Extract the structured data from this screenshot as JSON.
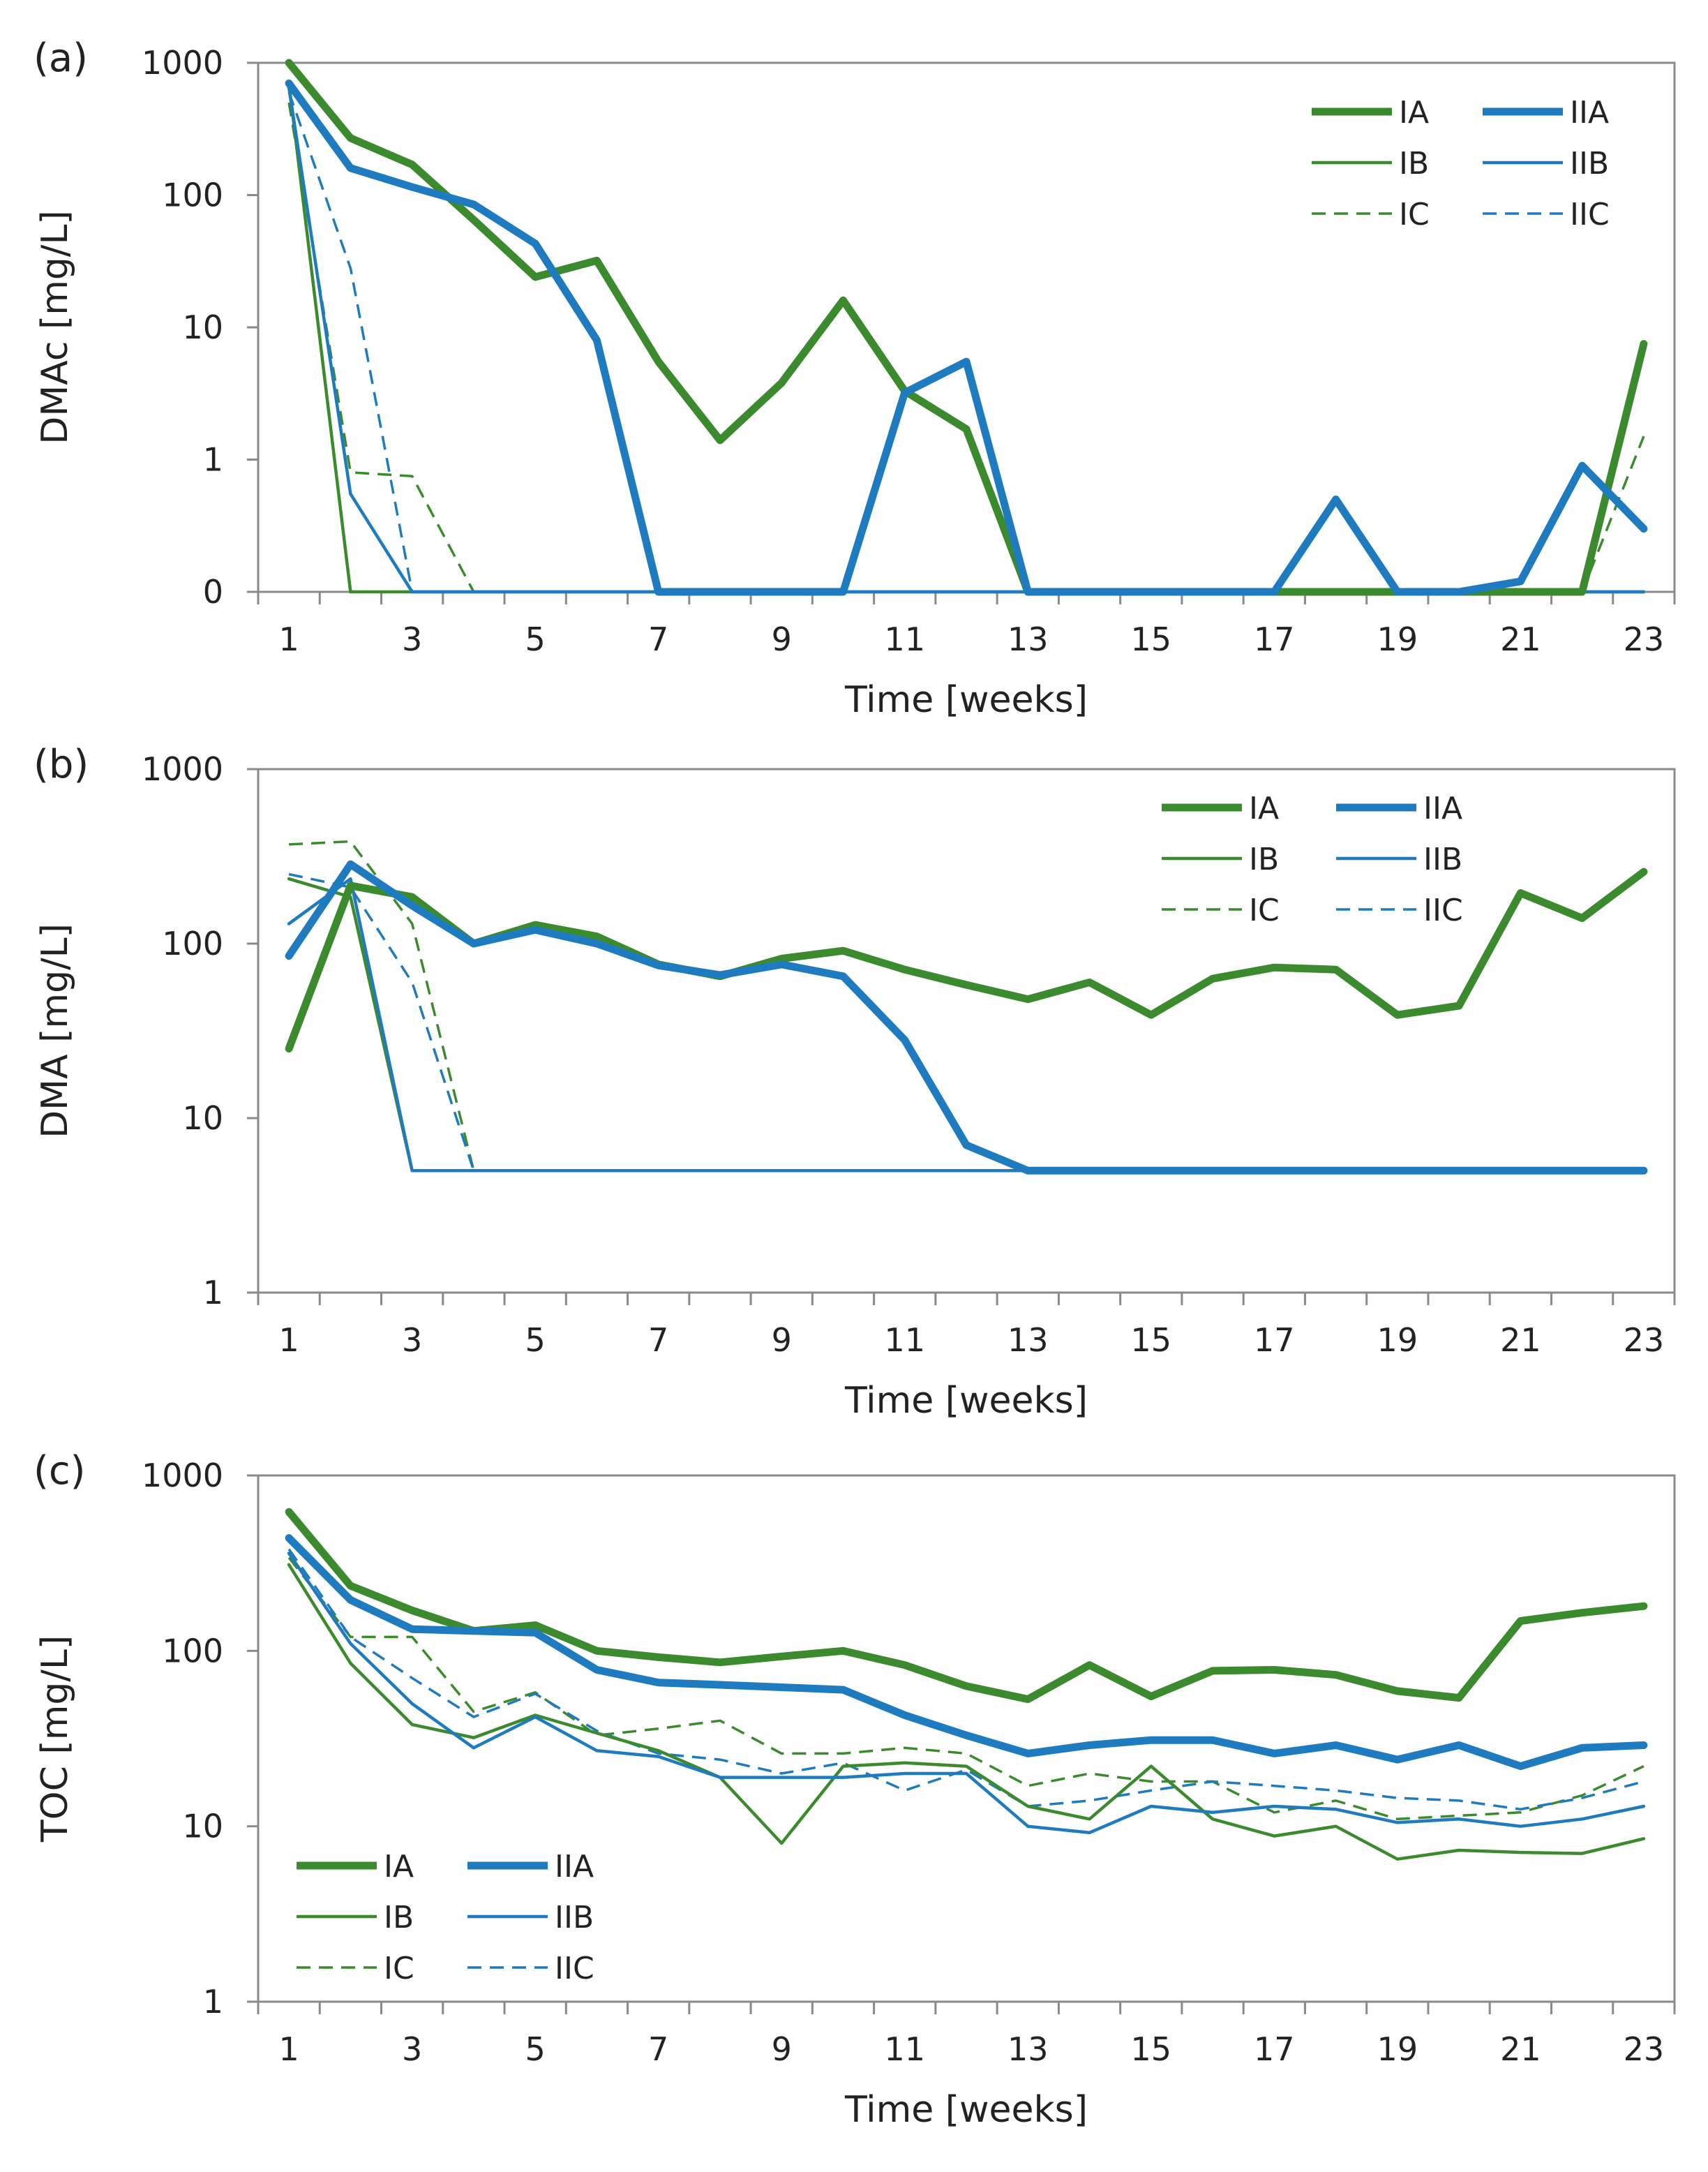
{
  "colors": {
    "green": "#3b8a2e",
    "blue": "#1f7bbf"
  },
  "chart_data": [
    {
      "panel_label": "(a)",
      "type": "line",
      "title": "",
      "ylabel": "DMAc [mg/L]",
      "xlabel": "Time [weeks]",
      "yscale": "log",
      "ylim": [
        0.1,
        1000
      ],
      "y_ticks": [
        0.1,
        1,
        10,
        100,
        1000
      ],
      "y_tick_labels": [
        "0",
        "1",
        "10",
        "100",
        "1000"
      ],
      "xlim": [
        1,
        23
      ],
      "x_ticks": [
        1,
        3,
        5,
        7,
        9,
        11,
        13,
        15,
        17,
        19,
        21,
        23
      ],
      "x_tick_labels": [
        "1",
        "3",
        "5",
        "7",
        "9",
        "11",
        "13",
        "15",
        "17",
        "19",
        "21",
        "23"
      ],
      "legend_position": "top-right",
      "x": [
        1,
        2,
        3,
        4,
        5,
        6,
        7,
        8,
        9,
        10,
        11,
        12,
        13,
        14,
        15,
        16,
        17,
        18,
        19,
        20,
        21,
        22,
        23
      ],
      "series": [
        {
          "name": "IA",
          "color": "green",
          "style": "thick",
          "values": [
            1000,
            270,
            170,
            65,
            24,
            32,
            5.5,
            1.4,
            3.8,
            16,
            3.3,
            1.7,
            0.1,
            0.1,
            0.1,
            0.1,
            0.1,
            0.1,
            0.1,
            0.1,
            0.1,
            0.1,
            7.5
          ]
        },
        {
          "name": "IIA",
          "color": "blue",
          "style": "thick",
          "values": [
            700,
            160,
            115,
            85,
            43,
            8,
            0.1,
            0.1,
            0.1,
            0.1,
            3.2,
            5.5,
            0.1,
            0.1,
            0.1,
            0.1,
            0.1,
            0.5,
            0.1,
            0.1,
            0.12,
            0.9,
            0.3
          ]
        },
        {
          "name": "IB",
          "color": "green",
          "style": "thin",
          "values": [
            700,
            0.1,
            0.1,
            0.1,
            0.1,
            0.1,
            0.1,
            0.1,
            0.1,
            0.1,
            0.1,
            0.1,
            0.1,
            0.1,
            0.1,
            0.1,
            0.1,
            0.1,
            0.1,
            0.1,
            0.1,
            0.1,
            0.1
          ]
        },
        {
          "name": "IIB",
          "color": "blue",
          "style": "thin",
          "values": [
            650,
            0.55,
            0.1,
            0.1,
            0.1,
            0.1,
            0.1,
            0.1,
            0.1,
            0.1,
            0.1,
            0.1,
            0.1,
            0.1,
            0.1,
            0.1,
            0.1,
            0.1,
            0.1,
            0.1,
            0.1,
            0.1,
            0.1
          ]
        },
        {
          "name": "IC",
          "color": "green",
          "style": "dashed",
          "values": [
            500,
            0.8,
            0.75,
            0.1,
            0.1,
            0.1,
            0.1,
            0.1,
            0.1,
            0.1,
            0.1,
            0.1,
            0.1,
            0.1,
            0.1,
            0.1,
            0.1,
            0.1,
            0.1,
            0.1,
            0.1,
            0.1,
            1.5
          ]
        },
        {
          "name": "IIC",
          "color": "blue",
          "style": "dashed",
          "values": [
            600,
            28,
            0.1,
            0.1,
            0.1,
            0.1,
            0.1,
            0.1,
            0.1,
            0.1,
            0.1,
            0.1,
            0.1,
            0.1,
            0.1,
            0.1,
            0.1,
            0.1,
            0.1,
            0.1,
            0.1,
            0.1,
            0.1
          ]
        }
      ]
    },
    {
      "panel_label": "(b)",
      "type": "line",
      "title": "",
      "ylabel": "DMA [mg/L]",
      "xlabel": "Time [weeks]",
      "yscale": "log",
      "ylim": [
        1,
        1000
      ],
      "y_ticks": [
        1,
        10,
        100,
        1000
      ],
      "y_tick_labels": [
        "1",
        "10",
        "100",
        "1000"
      ],
      "xlim": [
        1,
        23
      ],
      "x_ticks": [
        1,
        3,
        5,
        7,
        9,
        11,
        13,
        15,
        17,
        19,
        21,
        23
      ],
      "x_tick_labels": [
        "1",
        "3",
        "5",
        "7",
        "9",
        "11",
        "13",
        "15",
        "17",
        "19",
        "21",
        "23"
      ],
      "legend_position": "top-right",
      "x": [
        1,
        2,
        3,
        4,
        5,
        6,
        7,
        8,
        9,
        10,
        11,
        12,
        13,
        14,
        15,
        16,
        17,
        18,
        19,
        20,
        21,
        22,
        23
      ],
      "series": [
        {
          "name": "IA",
          "color": "green",
          "style": "thick",
          "values": [
            25,
            215,
            185,
            100,
            128,
            110,
            76,
            65,
            82,
            91,
            71,
            58,
            48,
            60,
            39,
            63,
            73,
            71,
            39,
            44,
            195,
            140,
            258
          ]
        },
        {
          "name": "IIA",
          "color": "blue",
          "style": "thick",
          "values": [
            85,
            285,
            165,
            100,
            120,
            100,
            75,
            66,
            76,
            65,
            28,
            7,
            5,
            5,
            5,
            5,
            5,
            5,
            5,
            5,
            5,
            5,
            5
          ]
        },
        {
          "name": "IB",
          "color": "green",
          "style": "thin",
          "values": [
            235,
            185,
            5,
            5,
            5,
            5,
            5,
            5,
            5,
            5,
            5,
            5,
            5,
            5,
            5,
            5,
            5,
            5,
            5,
            5,
            5,
            5,
            5
          ]
        },
        {
          "name": "IIB",
          "color": "blue",
          "style": "thin",
          "values": [
            130,
            235,
            5,
            5,
            5,
            5,
            5,
            5,
            5,
            5,
            5,
            5,
            5,
            5,
            5,
            5,
            5,
            5,
            5,
            5,
            5,
            5,
            5
          ]
        },
        {
          "name": "IC",
          "color": "green",
          "style": "dashed",
          "values": [
            370,
            385,
            130,
            5,
            5,
            5,
            5,
            5,
            5,
            5,
            5,
            5,
            5,
            5,
            5,
            5,
            5,
            5,
            5,
            5,
            5,
            5,
            5
          ]
        },
        {
          "name": "IIC",
          "color": "blue",
          "style": "dashed",
          "values": [
            250,
            210,
            60,
            5,
            5,
            5,
            5,
            5,
            5,
            5,
            5,
            5,
            5,
            5,
            5,
            5,
            5,
            5,
            5,
            5,
            5,
            5,
            5
          ]
        }
      ]
    },
    {
      "panel_label": "(c)",
      "type": "line",
      "title": "",
      "ylabel": "TOC [mg/L]",
      "xlabel": "Time [weeks]",
      "yscale": "log",
      "ylim": [
        1,
        1000
      ],
      "y_ticks": [
        1,
        10,
        100,
        1000
      ],
      "y_tick_labels": [
        "1",
        "10",
        "100",
        "1000"
      ],
      "xlim": [
        1,
        23
      ],
      "x_ticks": [
        1,
        3,
        5,
        7,
        9,
        11,
        13,
        15,
        17,
        19,
        21,
        23
      ],
      "x_tick_labels": [
        "1",
        "3",
        "5",
        "7",
        "9",
        "11",
        "13",
        "15",
        "17",
        "19",
        "21",
        "23"
      ],
      "legend_position": "bottom-left",
      "x": [
        1,
        2,
        3,
        4,
        5,
        6,
        7,
        8,
        9,
        10,
        11,
        12,
        13,
        14,
        15,
        16,
        17,
        18,
        19,
        20,
        21,
        22,
        23
      ],
      "series": [
        {
          "name": "IA",
          "color": "green",
          "style": "thick",
          "values": [
            620,
            235,
            170,
            130,
            140,
            100,
            92,
            86,
            93,
            100,
            83,
            63,
            53,
            83,
            55,
            77,
            78,
            73,
            59,
            54,
            148,
            165,
            180
          ]
        },
        {
          "name": "IIA",
          "color": "blue",
          "style": "thick",
          "values": [
            440,
            195,
            133,
            130,
            127,
            78,
            66,
            64,
            62,
            60,
            43,
            33,
            26,
            29,
            31,
            31,
            26,
            29,
            24,
            29,
            22,
            28,
            29
          ]
        },
        {
          "name": "IB",
          "color": "green",
          "style": "thin",
          "values": [
            310,
            85,
            38,
            32,
            43,
            34,
            27,
            19,
            8,
            22,
            23,
            22,
            13,
            11,
            22,
            11,
            8.8,
            10,
            6.5,
            7.3,
            7.1,
            7.0,
            8.5
          ]
        },
        {
          "name": "IIB",
          "color": "blue",
          "style": "thin",
          "values": [
            360,
            110,
            50,
            28,
            42,
            27,
            25,
            19,
            19,
            19,
            20,
            20,
            10,
            9.2,
            13,
            12,
            13,
            12.5,
            10.5,
            11,
            10,
            11,
            13
          ]
        },
        {
          "name": "IC",
          "color": "green",
          "style": "dashed",
          "values": [
            340,
            120,
            120,
            45,
            58,
            33,
            36,
            40,
            26,
            26,
            28,
            26,
            17,
            20,
            18,
            18,
            12,
            14,
            11,
            11.5,
            12,
            15,
            22
          ]
        },
        {
          "name": "IIC",
          "color": "blue",
          "style": "dashed",
          "values": [
            380,
            120,
            70,
            42,
            57,
            35,
            26,
            24,
            20,
            23,
            16,
            21,
            13,
            14,
            16,
            18,
            17,
            16,
            14.5,
            14,
            12.5,
            14.5,
            18
          ]
        }
      ]
    }
  ]
}
